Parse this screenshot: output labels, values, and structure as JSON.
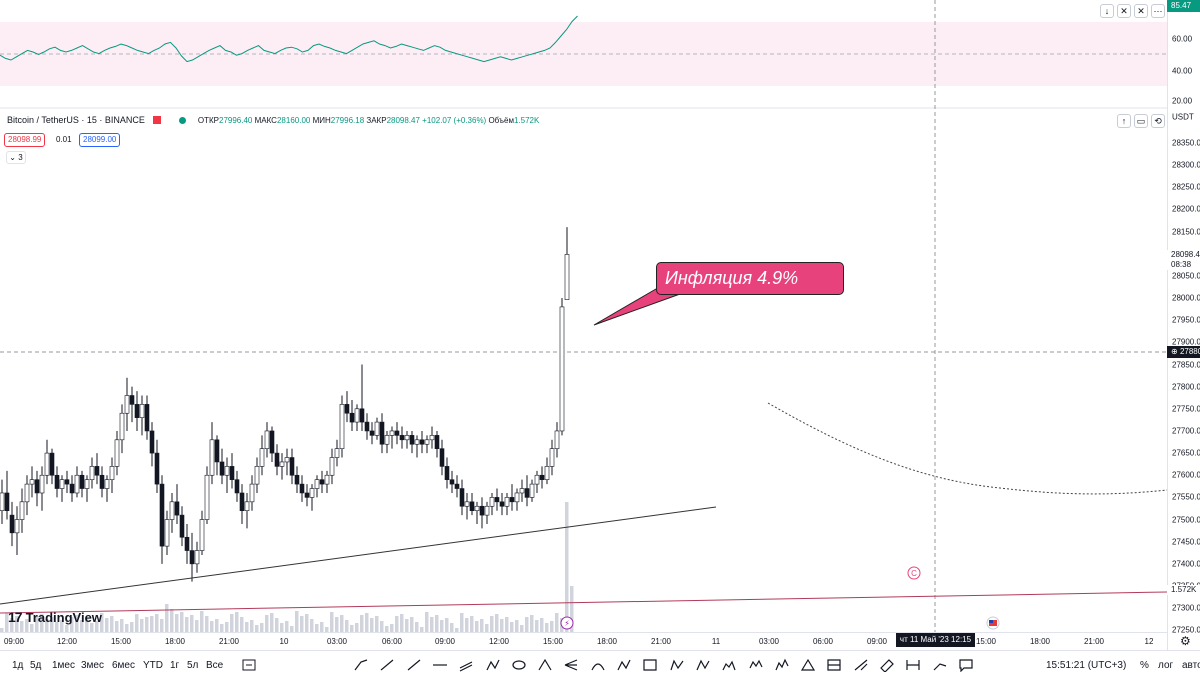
{
  "rsi": {
    "value": "85.47",
    "levels": [
      "60.00",
      "40.00",
      "20.00"
    ],
    "controls": [
      "↓",
      "✕",
      "✕"
    ]
  },
  "legend": {
    "symbol": "Bitcoin / TetherUS · 15 · BINANCE",
    "open_label": "ОТКР",
    "open": "27996.40",
    "high_label": "МАКС",
    "high": "28160.00",
    "low_label": "МИН",
    "low": "27996.18",
    "close_label": "ЗАКР",
    "close": "28098.47",
    "change": "+102.07 (+0.36%)",
    "volume_label": "Объём",
    "volume": "1.572K",
    "bid": "28098.99",
    "spread": "0.01",
    "ask": "28099.00",
    "collapse": "3"
  },
  "price_scale": {
    "currency": "USDT",
    "ticks": [
      "28350.00",
      "28300.00",
      "28250.00",
      "28200.00",
      "28150.00",
      "28050.00",
      "28000.00",
      "27950.00",
      "27900.00",
      "27850.00",
      "27800.00",
      "27750.00",
      "27700.00",
      "27650.00",
      "27600.00",
      "27550.00",
      "27500.00",
      "27450.00",
      "27400.00",
      "27350.00",
      "27300.00",
      "27250.00"
    ],
    "last_price": "28098.47",
    "countdown": "08:38",
    "crosshair_price": "27880.09",
    "volume_tag": "1.572K"
  },
  "time_axis": {
    "labels": [
      "09:00",
      "12:00",
      "15:00",
      "18:00",
      "21:00",
      "10",
      "03:00",
      "06:00",
      "09:00",
      "12:00",
      "15:00",
      "18:00",
      "21:00",
      "11",
      "03:00",
      "06:00",
      "09:00",
      "15:00",
      "18:00",
      "21:00",
      "12"
    ],
    "crosshair_date": "чт 11 Май '23   12:15"
  },
  "callout": {
    "text": "Инфляция 4.9%"
  },
  "branding": {
    "logo_mark": "17",
    "name": "TradingView"
  },
  "toolbar": {
    "timeframes": [
      "1д",
      "5д",
      "1мес",
      "3мес",
      "6мес",
      "YTD",
      "1г",
      "5л",
      "Все"
    ],
    "clock": "15:51:21 (UTC+3)",
    "percent": "%",
    "log": "лог",
    "auto": "авто"
  },
  "colors": {
    "up": "#089981",
    "down": "#f23645",
    "callout": "#e8427c",
    "rsi_line": "#089981",
    "rsi_band": "#fdeef6",
    "trend_dark": "#333333",
    "trend_red": "#b23a5a"
  }
}
